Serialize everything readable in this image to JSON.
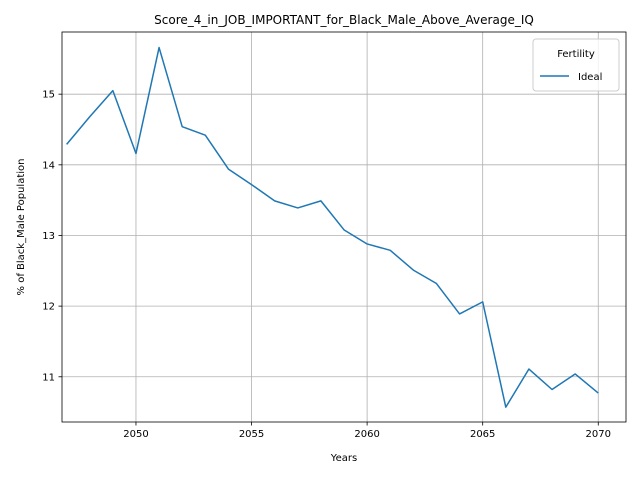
{
  "chart_data": {
    "type": "line",
    "title": "Score_4_in_JOB_IMPORTANT_for_Black_Male_Above_Average_IQ",
    "xlabel": "Years",
    "ylabel": "% of Black_Male Population",
    "xlim": [
      2046.8,
      2071.2
    ],
    "ylim": [
      10.36,
      15.88
    ],
    "xticks": [
      2050,
      2055,
      2060,
      2065,
      2070
    ],
    "yticks": [
      11,
      12,
      13,
      14,
      15
    ],
    "grid": true,
    "legend": {
      "title": "Fertility",
      "placement": "top-right"
    },
    "series": [
      {
        "name": "Ideal",
        "color": "#1f77b4",
        "x": [
          2047,
          2048,
          2049,
          2050,
          2051,
          2052,
          2053,
          2054,
          2055,
          2056,
          2057,
          2058,
          2059,
          2060,
          2061,
          2062,
          2063,
          2064,
          2065,
          2066,
          2067,
          2068,
          2069,
          2070
        ],
        "y": [
          14.29,
          14.68,
          15.05,
          14.16,
          15.66,
          14.54,
          14.42,
          13.94,
          13.72,
          13.49,
          13.39,
          13.49,
          13.08,
          12.88,
          12.79,
          12.51,
          12.32,
          11.89,
          12.06,
          10.57,
          11.11,
          10.82,
          11.04,
          10.77
        ]
      }
    ]
  }
}
